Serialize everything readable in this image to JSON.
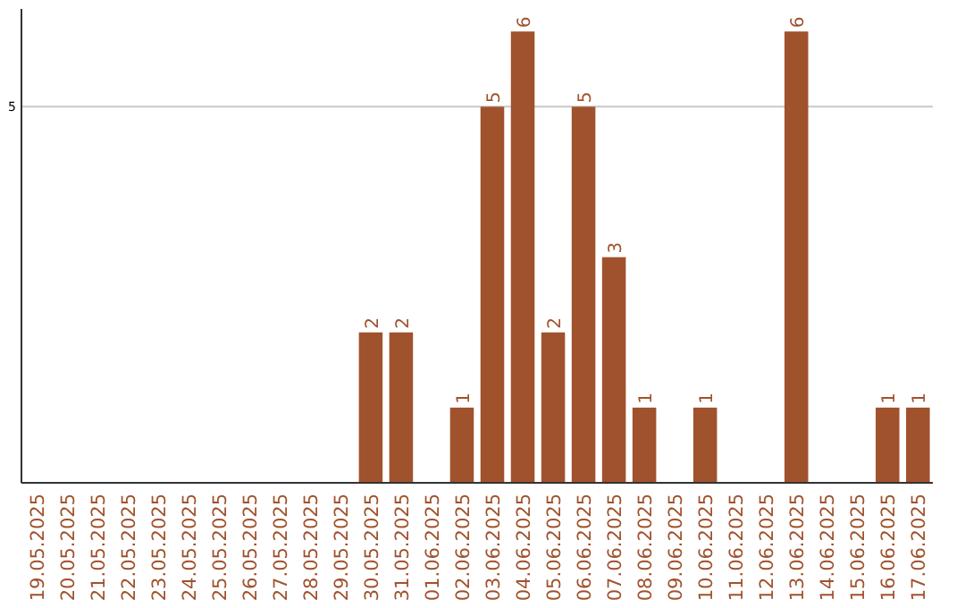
{
  "chart_data": {
    "type": "bar",
    "categories": [
      "19.05.2025",
      "20.05.2025",
      "21.05.2025",
      "22.05.2025",
      "23.05.2025",
      "24.05.2025",
      "25.05.2025",
      "26.05.2025",
      "27.05.2025",
      "28.05.2025",
      "29.05.2025",
      "30.05.2025",
      "31.05.2025",
      "01.06.2025",
      "02.06.2025",
      "03.06.2025",
      "04.06.2025",
      "05.06.2025",
      "06.06.2025",
      "07.06.2025",
      "08.06.2025",
      "09.06.2025",
      "10.06.2025",
      "11.06.2025",
      "12.06.2025",
      "13.06.2025",
      "14.06.2025",
      "15.06.2025",
      "16.06.2025",
      "17.06.2025"
    ],
    "values": [
      0,
      0,
      0,
      0,
      0,
      0,
      0,
      0,
      0,
      0,
      0,
      2,
      2,
      0,
      1,
      5,
      6,
      2,
      5,
      3,
      1,
      0,
      1,
      0,
      0,
      6,
      0,
      0,
      1,
      1
    ],
    "value_labels": [
      null,
      null,
      null,
      null,
      null,
      null,
      null,
      null,
      null,
      null,
      null,
      "2",
      "2",
      null,
      "1",
      "5",
      "6",
      "2",
      "5",
      "3",
      "1",
      null,
      "1",
      null,
      null,
      "6",
      null,
      null,
      "1",
      "1"
    ],
    "color": "#a0522d",
    "ylim": [
      0,
      6.3
    ],
    "yticks": [
      5
    ],
    "grid": "y"
  }
}
